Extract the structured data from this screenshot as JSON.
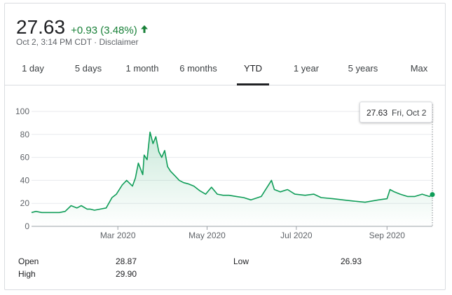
{
  "quote": {
    "price": "27.63",
    "change": "+0.93 (3.48%)",
    "timestamp": "Oct 2, 3:14 PM CDT",
    "separator": " · ",
    "disclaimer": "Disclaimer",
    "colors": {
      "up": "#188038",
      "line": "#0f9d58"
    }
  },
  "tabs": [
    {
      "label": "1 day"
    },
    {
      "label": "5 days"
    },
    {
      "label": "1 month"
    },
    {
      "label": "6 months"
    },
    {
      "label": "YTD",
      "active": true
    },
    {
      "label": "1 year"
    },
    {
      "label": "5 years"
    },
    {
      "label": "Max"
    }
  ],
  "tooltip": {
    "value": "27.63",
    "date": "Fri, Oct 2"
  },
  "stats": {
    "open_label": "Open",
    "open_value": "28.87",
    "high_label": "High",
    "high_value": "29.90",
    "low_label": "Low",
    "low_value": "26.93"
  },
  "chart_data": {
    "type": "area",
    "ylim": [
      0,
      100
    ],
    "y_ticks": [
      0,
      20,
      40,
      60,
      80,
      100
    ],
    "x_tick_labels": [
      {
        "label": "Mar 2020",
        "date": "2020-03-01"
      },
      {
        "label": "May 2020",
        "date": "2020-05-01"
      },
      {
        "label": "Jul 2020",
        "date": "2020-07-01"
      },
      {
        "label": "Sep 2020",
        "date": "2020-09-01"
      }
    ],
    "x_range": [
      "2020-01-02",
      "2020-10-02"
    ],
    "grid": true,
    "series": [
      {
        "x": [
          "2020-01-02",
          "2020-01-05",
          "2020-01-09",
          "2020-01-13",
          "2020-01-17",
          "2020-01-21",
          "2020-01-25",
          "2020-01-29",
          "2020-02-02",
          "2020-02-05",
          "2020-02-09",
          "2020-02-11",
          "2020-02-14",
          "2020-02-18",
          "2020-02-22",
          "2020-02-26",
          "2020-02-29",
          "2020-03-04",
          "2020-03-07",
          "2020-03-11",
          "2020-03-13",
          "2020-03-15",
          "2020-03-18",
          "2020-03-19",
          "2020-03-21",
          "2020-03-23",
          "2020-03-25",
          "2020-03-27",
          "2020-03-29",
          "2020-03-31",
          "2020-04-02",
          "2020-04-04",
          "2020-04-06",
          "2020-04-09",
          "2020-04-12",
          "2020-04-15",
          "2020-04-18",
          "2020-04-22",
          "2020-04-26",
          "2020-04-30",
          "2020-05-04",
          "2020-05-08",
          "2020-05-12",
          "2020-05-16",
          "2020-05-21",
          "2020-05-26",
          "2020-05-31",
          "2020-06-07",
          "2020-06-14",
          "2020-06-16",
          "2020-06-20",
          "2020-06-25",
          "2020-06-30",
          "2020-07-07",
          "2020-07-13",
          "2020-07-18",
          "2020-07-26",
          "2020-08-02",
          "2020-08-09",
          "2020-08-17",
          "2020-08-26",
          "2020-09-01",
          "2020-09-03",
          "2020-09-06",
          "2020-09-10",
          "2020-09-15",
          "2020-09-20",
          "2020-09-25",
          "2020-09-30",
          "2020-10-02"
        ],
        "y": [
          12,
          13,
          12,
          12,
          12,
          12,
          13,
          18,
          16,
          18,
          15,
          15,
          14,
          15,
          16,
          25,
          28,
          36,
          40,
          35,
          42,
          55,
          45,
          62,
          58,
          82,
          72,
          78,
          65,
          60,
          66,
          52,
          48,
          44,
          40,
          38,
          37,
          35,
          31,
          28,
          34,
          28,
          27,
          27,
          26,
          25,
          23,
          26,
          40,
          32,
          30,
          32,
          28,
          27,
          28,
          25,
          24,
          23,
          22,
          21,
          23,
          24,
          32,
          30,
          28,
          26,
          26,
          28,
          26,
          27.63
        ]
      }
    ]
  }
}
